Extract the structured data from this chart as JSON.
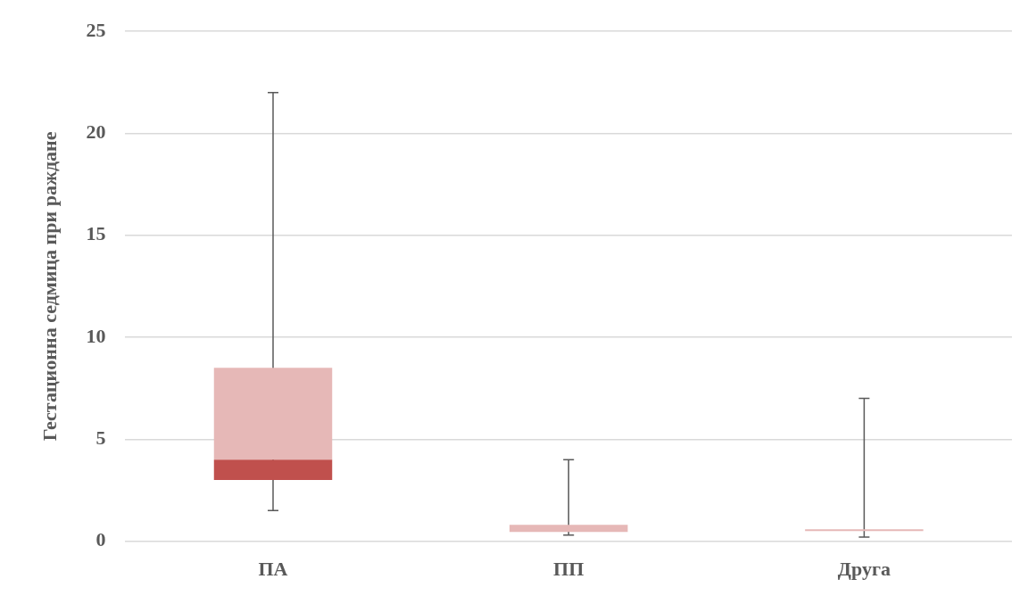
{
  "chart_data": {
    "type": "box",
    "ylabel": "Гестационна седмица при раждане",
    "categories": [
      "ПА",
      "ПП",
      "Друга"
    ],
    "series": [
      {
        "color": "#e6b8b7",
        "colors": [
          "#c0504d",
          "#e6b8b7",
          "#e6b8b7"
        ],
        "boxes": [
          {
            "low": 1.5,
            "q1": 3,
            "median": 4,
            "q3": 8.5,
            "high": 22
          },
          {
            "low": 0.3,
            "q1": 0.45,
            "median": 0.45,
            "q3": 0.8,
            "high": 4
          },
          {
            "low": 0.2,
            "q1": 0.5,
            "median": 0.5,
            "q3": 0.58,
            "high": 7
          }
        ]
      }
    ],
    "ylim": [
      0,
      25
    ],
    "yticks": [
      0,
      5,
      10,
      15,
      20,
      25
    ],
    "grid": "y",
    "legend": false
  }
}
